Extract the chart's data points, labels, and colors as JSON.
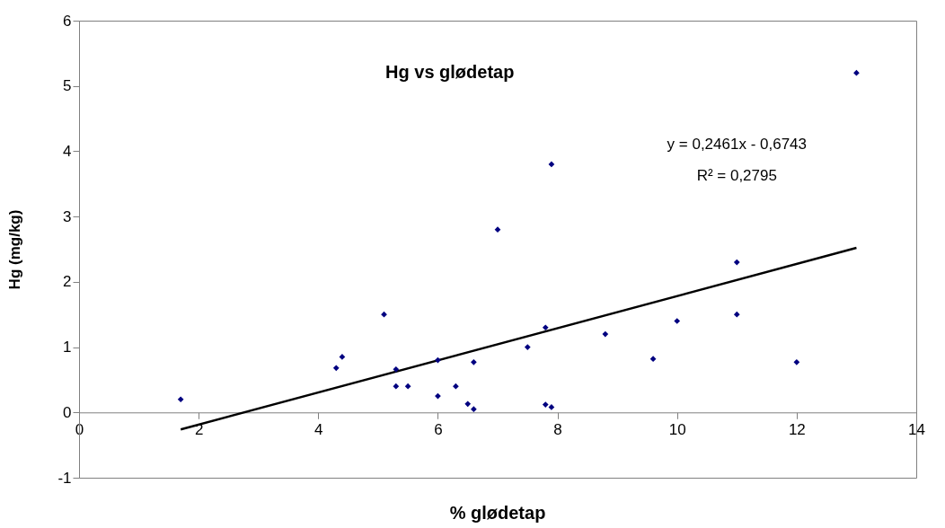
{
  "chart_data": {
    "type": "scatter",
    "xlabel": "% glødetap",
    "ylabel": "Hg (mg/kg)",
    "annotations": [
      "Hg vs glødetap",
      "y = 0,2461x - 0,6743",
      "R² = 0,2795"
    ],
    "xlim": [
      0,
      14
    ],
    "xticks": [
      0,
      2,
      4,
      6,
      8,
      10,
      12,
      14
    ],
    "ylim": [
      -1,
      6
    ],
    "yticks": [
      -1,
      0,
      1,
      2,
      3,
      4,
      5,
      6
    ],
    "grid": false,
    "legend": false,
    "series": [
      {
        "marker": "diamond",
        "color": "#000080",
        "x": [
          1.7,
          4.3,
          4.4,
          5.1,
          5.3,
          5.3,
          5.5,
          6.0,
          6.0,
          6.3,
          6.5,
          6.6,
          6.6,
          7.0,
          7.5,
          7.8,
          7.8,
          7.9,
          7.9,
          8.8,
          9.6,
          10,
          11,
          11,
          12,
          13
        ],
        "values": [
          0.2,
          0.68,
          0.85,
          1.5,
          0.66,
          0.4,
          0.4,
          0.8,
          0.25,
          0.4,
          0.13,
          0.05,
          0.77,
          2.8,
          1.0,
          1.3,
          0.12,
          0.08,
          3.8,
          1.2,
          0.82,
          1.4,
          2.3,
          1.5,
          0.77,
          5.2
        ]
      },
      {
        "type": "line",
        "color": "#000000",
        "x": [
          1.7,
          13
        ],
        "values": [
          -0.26,
          2.52
        ]
      }
    ]
  }
}
